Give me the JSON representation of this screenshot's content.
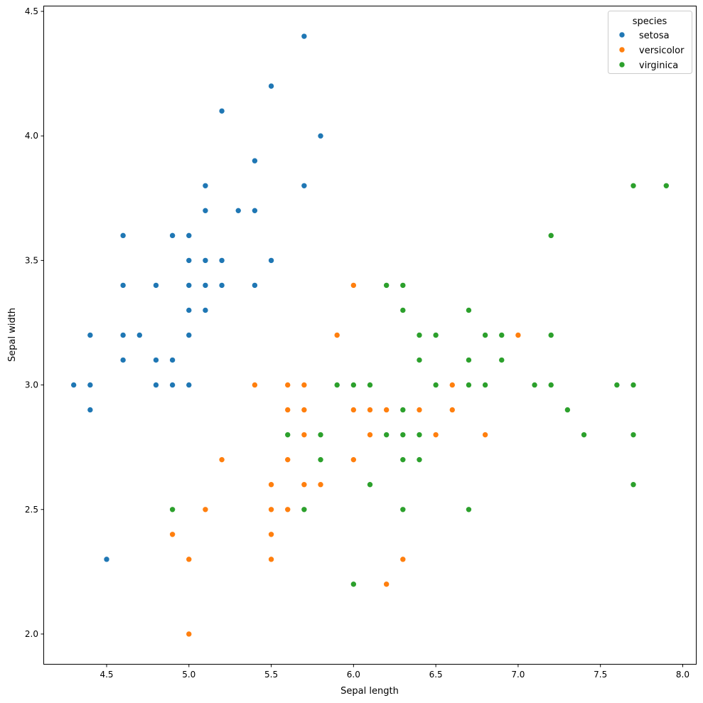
{
  "chart_data": {
    "type": "scatter",
    "title": "",
    "xlabel": "Sepal length",
    "ylabel": "Sepal width",
    "xlim": [
      4.12,
      8.08
    ],
    "ylim": [
      1.88,
      4.52
    ],
    "xticks": [
      4.5,
      5.0,
      5.5,
      6.0,
      6.5,
      7.0,
      7.5,
      8.0
    ],
    "xtick_labels": [
      "4.5",
      "5.0",
      "5.5",
      "6.0",
      "6.5",
      "7.0",
      "7.5",
      "8.0"
    ],
    "yticks": [
      2.0,
      2.5,
      3.0,
      3.5,
      4.0,
      4.5
    ],
    "ytick_labels": [
      "2.0",
      "2.5",
      "3.0",
      "3.5",
      "4.0",
      "4.5"
    ],
    "grid": false,
    "legend": {
      "title": "species",
      "placement": "top-right"
    },
    "series": [
      {
        "name": "setosa",
        "color": "#1f77b4",
        "points": [
          [
            5.7,
            4.4
          ],
          [
            5.5,
            4.2
          ],
          [
            5.2,
            4.1
          ],
          [
            5.8,
            4.0
          ],
          [
            5.4,
            3.9
          ],
          [
            5.1,
            3.8
          ],
          [
            5.7,
            3.8
          ],
          [
            5.1,
            3.7
          ],
          [
            5.3,
            3.7
          ],
          [
            5.4,
            3.7
          ],
          [
            4.6,
            3.6
          ],
          [
            4.9,
            3.6
          ],
          [
            5.0,
            3.6
          ],
          [
            5.0,
            3.5
          ],
          [
            5.1,
            3.5
          ],
          [
            5.2,
            3.5
          ],
          [
            5.5,
            3.5
          ],
          [
            4.6,
            3.4
          ],
          [
            4.8,
            3.4
          ],
          [
            5.0,
            3.4
          ],
          [
            5.1,
            3.4
          ],
          [
            5.2,
            3.4
          ],
          [
            5.4,
            3.4
          ],
          [
            5.0,
            3.3
          ],
          [
            5.1,
            3.3
          ],
          [
            4.4,
            3.2
          ],
          [
            4.6,
            3.2
          ],
          [
            4.7,
            3.2
          ],
          [
            5.0,
            3.2
          ],
          [
            4.6,
            3.1
          ],
          [
            4.8,
            3.1
          ],
          [
            4.9,
            3.1
          ],
          [
            4.3,
            3.0
          ],
          [
            4.4,
            3.0
          ],
          [
            4.8,
            3.0
          ],
          [
            4.9,
            3.0
          ],
          [
            5.0,
            3.0
          ],
          [
            4.4,
            2.9
          ],
          [
            4.5,
            2.3
          ]
        ]
      },
      {
        "name": "versicolor",
        "color": "#ff7f0e",
        "points": [
          [
            6.0,
            3.4
          ],
          [
            5.9,
            3.2
          ],
          [
            7.0,
            3.2
          ],
          [
            5.4,
            3.0
          ],
          [
            5.6,
            3.0
          ],
          [
            5.7,
            3.0
          ],
          [
            6.6,
            3.0
          ],
          [
            5.6,
            2.9
          ],
          [
            5.7,
            2.9
          ],
          [
            6.0,
            2.9
          ],
          [
            6.1,
            2.9
          ],
          [
            6.2,
            2.9
          ],
          [
            6.4,
            2.9
          ],
          [
            6.6,
            2.9
          ],
          [
            5.7,
            2.8
          ],
          [
            6.1,
            2.8
          ],
          [
            6.5,
            2.8
          ],
          [
            6.8,
            2.8
          ],
          [
            5.2,
            2.7
          ],
          [
            5.6,
            2.7
          ],
          [
            6.0,
            2.7
          ],
          [
            5.5,
            2.6
          ],
          [
            5.7,
            2.6
          ],
          [
            5.8,
            2.6
          ],
          [
            5.1,
            2.5
          ],
          [
            5.5,
            2.5
          ],
          [
            5.6,
            2.5
          ],
          [
            4.9,
            2.4
          ],
          [
            5.5,
            2.4
          ],
          [
            5.0,
            2.3
          ],
          [
            5.5,
            2.3
          ],
          [
            6.3,
            2.3
          ],
          [
            6.2,
            2.2
          ],
          [
            5.0,
            2.0
          ]
        ]
      },
      {
        "name": "virginica",
        "color": "#2ca02c",
        "points": [
          [
            7.7,
            3.8
          ],
          [
            7.9,
            3.8
          ],
          [
            7.2,
            3.6
          ],
          [
            6.2,
            3.4
          ],
          [
            6.3,
            3.4
          ],
          [
            6.3,
            3.3
          ],
          [
            6.7,
            3.3
          ],
          [
            6.4,
            3.2
          ],
          [
            6.5,
            3.2
          ],
          [
            6.8,
            3.2
          ],
          [
            6.9,
            3.2
          ],
          [
            7.2,
            3.2
          ],
          [
            6.4,
            3.1
          ],
          [
            6.7,
            3.1
          ],
          [
            6.9,
            3.1
          ],
          [
            5.9,
            3.0
          ],
          [
            6.0,
            3.0
          ],
          [
            6.1,
            3.0
          ],
          [
            6.5,
            3.0
          ],
          [
            6.7,
            3.0
          ],
          [
            6.8,
            3.0
          ],
          [
            7.1,
            3.0
          ],
          [
            7.2,
            3.0
          ],
          [
            7.6,
            3.0
          ],
          [
            7.7,
            3.0
          ],
          [
            6.3,
            2.9
          ],
          [
            7.3,
            2.9
          ],
          [
            5.6,
            2.8
          ],
          [
            5.8,
            2.8
          ],
          [
            6.2,
            2.8
          ],
          [
            6.3,
            2.8
          ],
          [
            6.4,
            2.8
          ],
          [
            7.4,
            2.8
          ],
          [
            7.7,
            2.8
          ],
          [
            5.8,
            2.7
          ],
          [
            6.3,
            2.7
          ],
          [
            6.4,
            2.7
          ],
          [
            6.1,
            2.6
          ],
          [
            7.7,
            2.6
          ],
          [
            4.9,
            2.5
          ],
          [
            5.7,
            2.5
          ],
          [
            6.3,
            2.5
          ],
          [
            6.7,
            2.5
          ],
          [
            6.0,
            2.2
          ]
        ]
      }
    ]
  }
}
